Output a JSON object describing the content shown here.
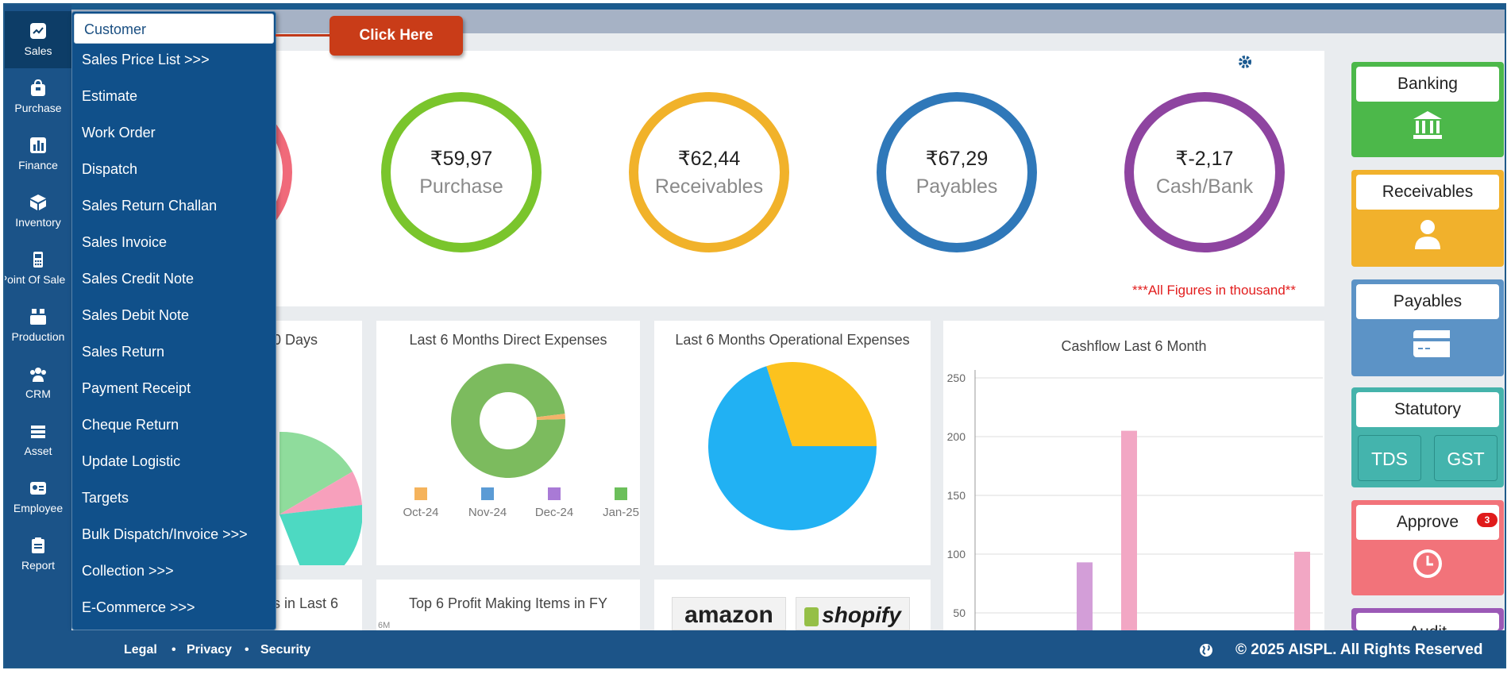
{
  "nav": {
    "items": [
      {
        "label": "Sales",
        "icon": "chart-icon"
      },
      {
        "label": "Purchase",
        "icon": "bag-icon"
      },
      {
        "label": "Finance",
        "icon": "bar-chart-icon"
      },
      {
        "label": "Inventory",
        "icon": "box-icon"
      },
      {
        "label": "Point Of Sale",
        "icon": "pos-icon"
      },
      {
        "label": "Production",
        "icon": "factory-icon"
      },
      {
        "label": "CRM",
        "icon": "users-icon"
      },
      {
        "label": "Asset",
        "icon": "stack-icon"
      },
      {
        "label": "Employee",
        "icon": "id-card-icon"
      },
      {
        "label": "Report",
        "icon": "clipboard-icon"
      }
    ]
  },
  "sales_menu": {
    "items": [
      "Customer",
      "Sales Price List >>>",
      "Estimate",
      "Work Order",
      "Dispatch",
      "Sales Return Challan",
      "Sales Invoice",
      "Sales Credit Note",
      "Sales Debit Note",
      "Sales Return",
      "Payment Receipt",
      "Cheque Return",
      "Update Logistic",
      "Targets",
      "Bulk Dispatch/Invoice >>>",
      "Collection >>>",
      "E-Commerce >>>"
    ]
  },
  "callout": {
    "label": "Click Here"
  },
  "summary": {
    "cards": [
      {
        "amount": "₹59,97",
        "name": "Purchase",
        "color": "#7ac52c"
      },
      {
        "amount": "₹62,44",
        "name": "Receivables",
        "color": "#f1b22a"
      },
      {
        "amount": "₹67,29",
        "name": "Payables",
        "color": "#2f78b9"
      },
      {
        "amount": "₹-2,17",
        "name": "Cash/Bank",
        "color": "#8e44a0"
      }
    ],
    "partial_ring_color": "#f06a7a",
    "note": "***All Figures in thousand**"
  },
  "widgets": {
    "days_title_partial": "0 Days",
    "direct_expenses_title": "Last 6 Months Direct Expenses",
    "operational_expenses_title": "Last 6 Months Operational Expenses",
    "cashflow_title": "Cashflow Last 6 Month",
    "last6_title_partial": "s in Last 6",
    "profit_items_title": "Top 6 Profit Making Items in FY",
    "profit_axis_partial": "6M",
    "amazon_label": "amazon",
    "shopify_label": "shopify"
  },
  "chart_data": [
    {
      "type": "pie",
      "title": "Last 6 Months Direct Expenses",
      "donut": true,
      "legend": [
        "Oct-24",
        "Nov-24",
        "Dec-24",
        "Jan-25"
      ],
      "legend_colors": [
        "#f5b35c",
        "#5b9bd5",
        "#a97ad6",
        "#6cbf5b"
      ],
      "slices": [
        {
          "value": 98.5,
          "color": "#7cbb5e"
        },
        {
          "value": 1.5,
          "color": "#f3b36a"
        }
      ]
    },
    {
      "type": "pie",
      "title": "Last 6 Months Operational Expenses",
      "slices": [
        {
          "value": 70,
          "color": "#21b1f3"
        },
        {
          "value": 30,
          "color": "#fcc21e"
        }
      ]
    },
    {
      "type": "bar",
      "title": "Cashflow Last 6 Month",
      "ylim": [
        0,
        250
      ],
      "yticks": [
        250,
        200,
        150,
        100,
        50
      ],
      "series": [
        {
          "values": [
            93
          ],
          "color": "#d39ed8"
        },
        {
          "values": [
            205,
            102
          ],
          "color": "#f2a7c4"
        }
      ]
    }
  ],
  "tiles": [
    {
      "label": "Banking",
      "color": "#4cb84a",
      "icon": "bank-icon"
    },
    {
      "label": "Receivables",
      "color": "#f1b12c",
      "icon": "user-icon"
    },
    {
      "label": "Payables",
      "color": "#5c93c6",
      "icon": "card-icon"
    },
    {
      "label": "Statutory",
      "color": "#45b3ab",
      "sub": [
        "TDS",
        "GST"
      ]
    },
    {
      "label": "Approve",
      "color": "#f2737a",
      "icon": "clock-icon",
      "badge": "3"
    },
    {
      "label": "Audit",
      "color": "#9b59b6"
    }
  ],
  "footer": {
    "links": [
      "Legal",
      "Privacy",
      "Security"
    ],
    "copyright": "© 2025 AISPL. All Rights Reserved"
  }
}
